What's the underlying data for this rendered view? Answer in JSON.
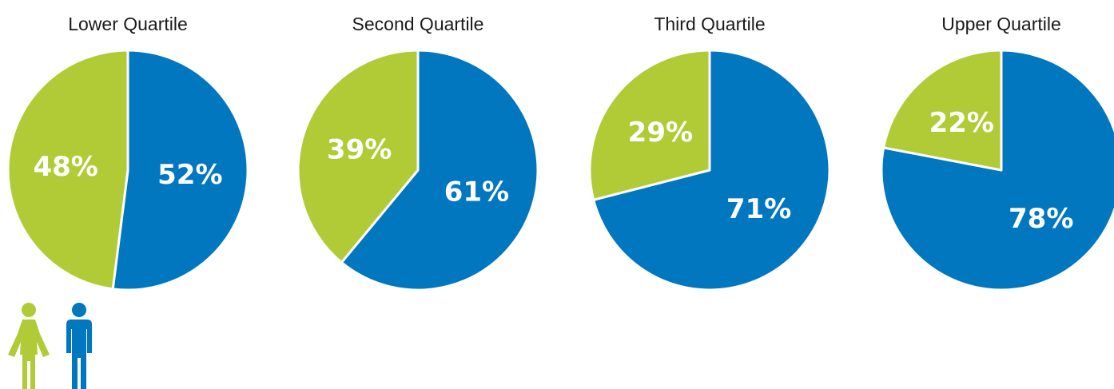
{
  "colors": {
    "women": "#b0cb35",
    "men": "#0177bf"
  },
  "legend": {
    "icons": [
      {
        "icon": "female-figure-icon",
        "series": "women"
      },
      {
        "icon": "male-figure-icon",
        "series": "men"
      }
    ]
  },
  "chart_data": [
    {
      "type": "pie",
      "title": "Lower Quartile",
      "slices": [
        {
          "series": "men",
          "value": 52,
          "label": "52%"
        },
        {
          "series": "women",
          "value": 48,
          "label": "48%"
        }
      ]
    },
    {
      "type": "pie",
      "title": "Second Quartile",
      "slices": [
        {
          "series": "men",
          "value": 61,
          "label": "61%"
        },
        {
          "series": "women",
          "value": 39,
          "label": "39%"
        }
      ]
    },
    {
      "type": "pie",
      "title": "Third Quartile",
      "slices": [
        {
          "series": "men",
          "value": 71,
          "label": "71%"
        },
        {
          "series": "women",
          "value": 29,
          "label": "29%"
        }
      ]
    },
    {
      "type": "pie",
      "title": "Upper Quartile",
      "slices": [
        {
          "series": "men",
          "value": 78,
          "label": "78%"
        },
        {
          "series": "women",
          "value": 22,
          "label": "22%"
        }
      ]
    }
  ]
}
